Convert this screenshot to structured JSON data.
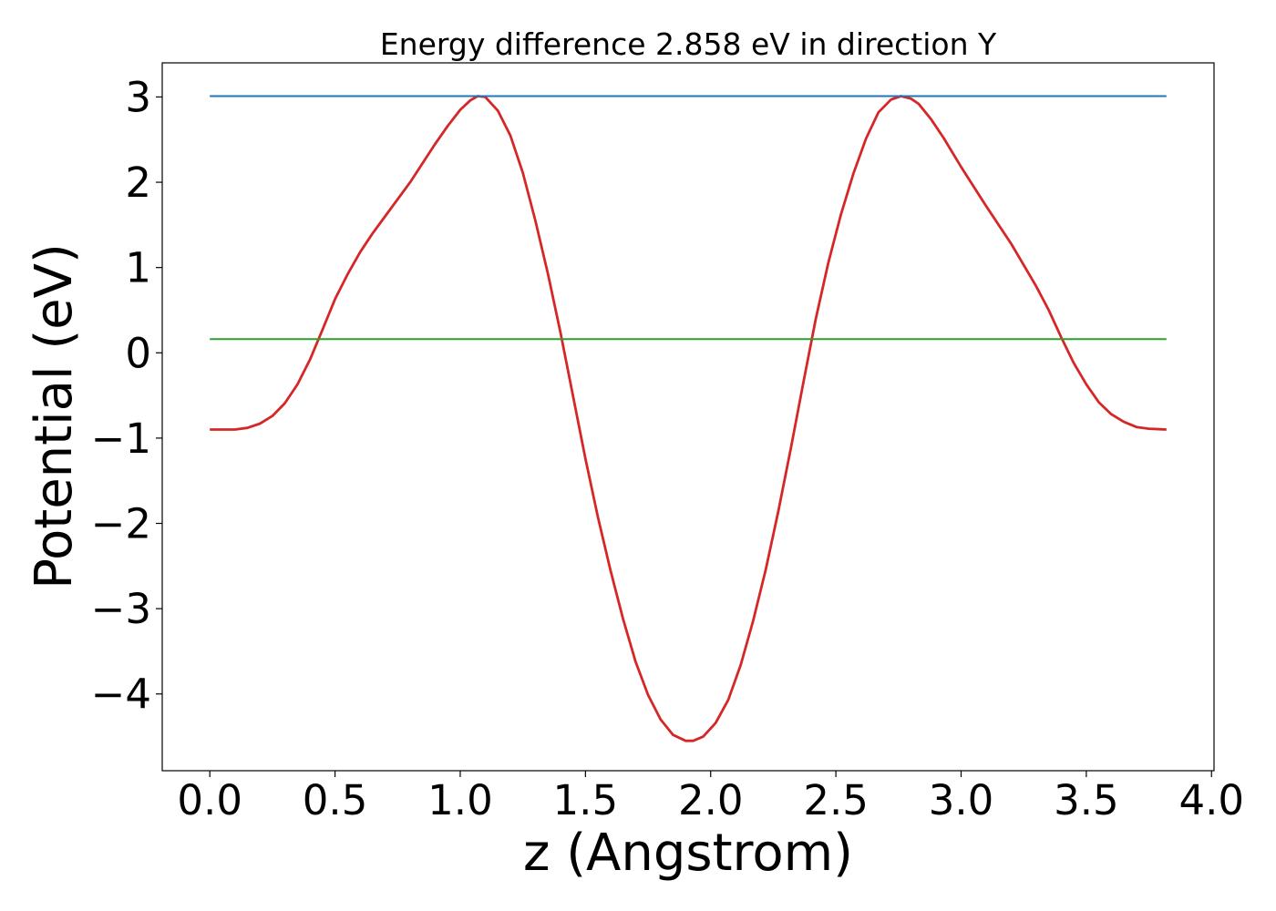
{
  "chart_data": {
    "type": "line",
    "title": "Energy difference 2.858 eV in direction Y",
    "xlabel": "z (Angstrom)",
    "ylabel": "Potential (eV)",
    "xlim": [
      -0.19,
      4.01
    ],
    "ylim": [
      -4.9,
      3.4
    ],
    "xticks": [
      0.0,
      0.5,
      1.0,
      1.5,
      2.0,
      2.5,
      3.0,
      3.5,
      4.0
    ],
    "xtick_labels": [
      "0.0",
      "0.5",
      "1.0",
      "1.5",
      "2.0",
      "2.5",
      "3.0",
      "3.5",
      "4.0"
    ],
    "yticks": [
      3,
      2,
      1,
      0,
      -1,
      -2,
      -3,
      -4
    ],
    "ytick_labels": [
      "3",
      "2",
      "1",
      "0",
      "−1",
      "−2",
      "−3",
      "−4"
    ],
    "grid": false,
    "series": [
      {
        "color": "#d62728",
        "x": [
          0.0,
          0.1,
          0.15,
          0.2,
          0.25,
          0.3,
          0.35,
          0.4,
          0.45,
          0.5,
          0.55,
          0.6,
          0.65,
          0.7,
          0.8,
          0.9,
          0.95,
          1.0,
          1.04,
          1.07,
          1.1,
          1.15,
          1.2,
          1.25,
          1.3,
          1.35,
          1.4,
          1.45,
          1.5,
          1.55,
          1.6,
          1.65,
          1.7,
          1.75,
          1.8,
          1.85,
          1.9,
          1.93,
          1.97,
          2.02,
          2.07,
          2.12,
          2.17,
          2.22,
          2.27,
          2.32,
          2.37,
          2.42,
          2.47,
          2.52,
          2.57,
          2.62,
          2.67,
          2.72,
          2.76,
          2.8,
          2.83,
          2.88,
          2.93,
          3.0,
          3.1,
          3.2,
          3.25,
          3.3,
          3.35,
          3.4,
          3.45,
          3.5,
          3.55,
          3.6,
          3.65,
          3.7,
          3.75,
          3.82
        ],
        "y": [
          -0.9,
          -0.9,
          -0.88,
          -0.83,
          -0.74,
          -0.59,
          -0.37,
          -0.08,
          0.27,
          0.63,
          0.92,
          1.18,
          1.4,
          1.6,
          2.0,
          2.45,
          2.66,
          2.85,
          2.96,
          3.01,
          3.0,
          2.84,
          2.55,
          2.11,
          1.55,
          0.93,
          0.24,
          -0.5,
          -1.24,
          -1.93,
          -2.55,
          -3.12,
          -3.62,
          -4.01,
          -4.3,
          -4.48,
          -4.55,
          -4.55,
          -4.5,
          -4.34,
          -4.07,
          -3.66,
          -3.14,
          -2.54,
          -1.86,
          -1.12,
          -0.35,
          0.4,
          1.06,
          1.62,
          2.1,
          2.51,
          2.82,
          2.97,
          3.01,
          2.98,
          2.92,
          2.74,
          2.52,
          2.18,
          1.72,
          1.28,
          1.03,
          0.78,
          0.5,
          0.18,
          -0.12,
          -0.37,
          -0.58,
          -0.72,
          -0.81,
          -0.87,
          -0.89,
          -0.9
        ]
      },
      {
        "color": "#1f77b4",
        "x": [
          0.0,
          3.82
        ],
        "y": [
          3.01,
          3.01
        ]
      },
      {
        "color": "#2ca02c",
        "x": [
          0.0,
          3.82
        ],
        "y": [
          0.16,
          0.16
        ]
      }
    ]
  }
}
